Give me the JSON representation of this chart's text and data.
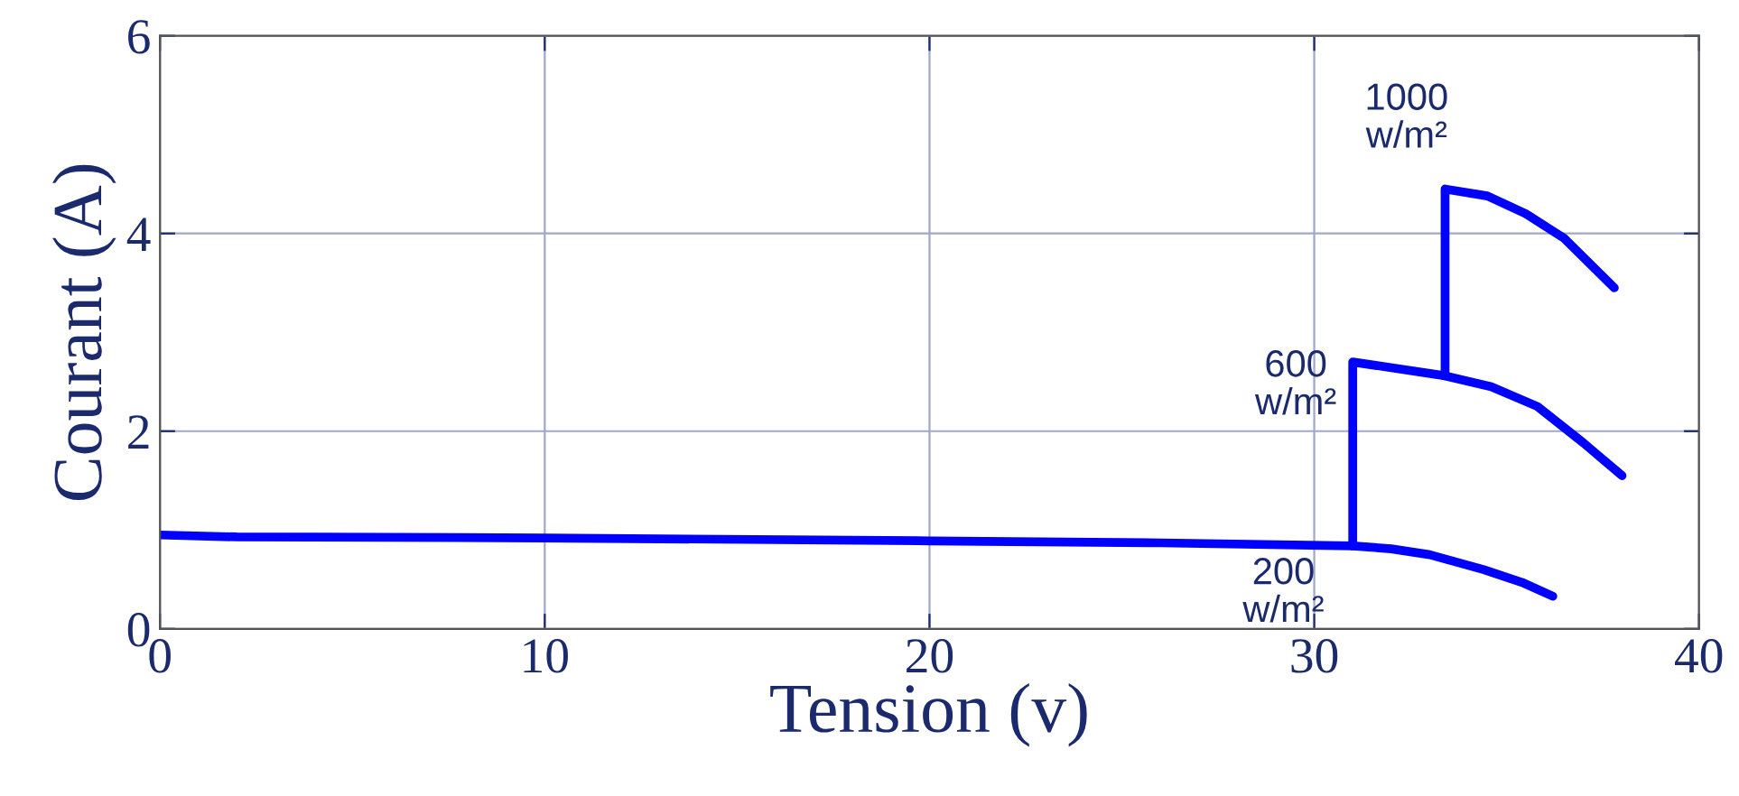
{
  "chart_data": {
    "type": "line",
    "xlabel": "Tension (v)",
    "ylabel": "Courant (A)",
    "xlim": [
      0,
      40
    ],
    "ylim": [
      0,
      6
    ],
    "xticks": [
      0,
      10,
      20,
      30,
      40
    ],
    "yticks": [
      0,
      2,
      4,
      6
    ],
    "grid": true,
    "line_style": "solid",
    "marker": "none",
    "series": [
      {
        "color": "#0000ff",
        "x": [
          0,
          2,
          10,
          20,
          26,
          31,
          31,
          33.4,
          33.4,
          34.5,
          35.5,
          36.5,
          37.8
        ],
        "values": [
          0.95,
          0.93,
          0.92,
          0.89,
          0.87,
          0.84,
          2.7,
          2.56,
          4.45,
          4.38,
          4.2,
          3.95,
          3.45
        ]
      },
      {
        "color": "#0000ff",
        "x": [
          33.4,
          34.6,
          35.8,
          37,
          38
        ],
        "values": [
          2.56,
          2.45,
          2.25,
          1.88,
          1.55
        ]
      },
      {
        "color": "#0000ff",
        "x": [
          31,
          32,
          33,
          34.4,
          35.4,
          36.2
        ],
        "values": [
          0.84,
          0.81,
          0.75,
          0.6,
          0.47,
          0.33
        ]
      }
    ],
    "annotations": [
      "1000\nw/m²",
      "600\nw/m²",
      "200\nw/m²"
    ]
  }
}
